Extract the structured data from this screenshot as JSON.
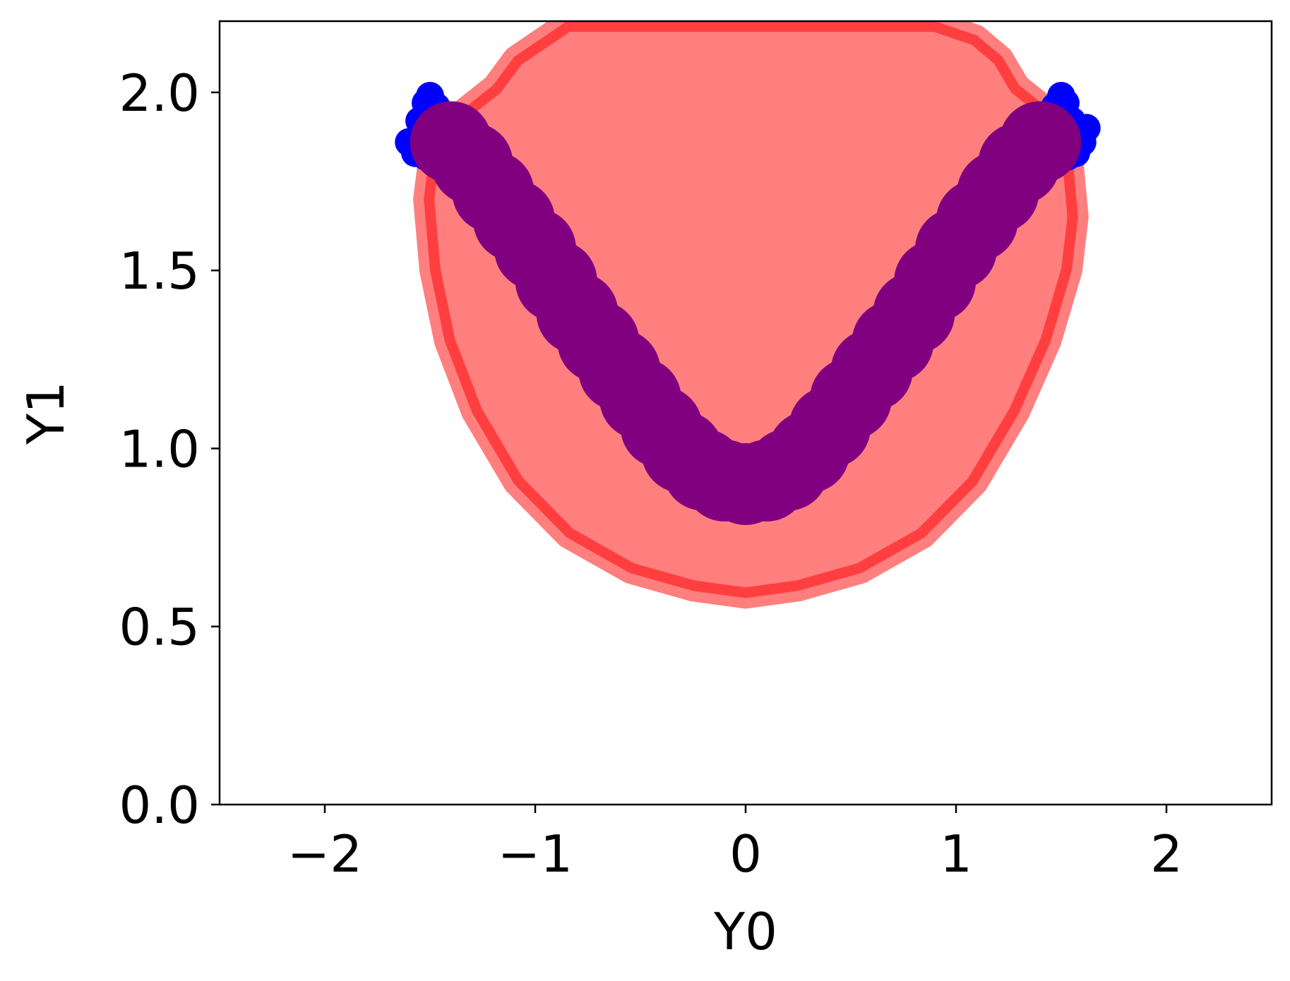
{
  "chart_data": {
    "type": "scatter",
    "title": "",
    "xlabel": "Y0",
    "ylabel": "Y1",
    "xlim": [
      -2.5,
      2.5
    ],
    "ylim": [
      0.0,
      2.2
    ],
    "xticks": [
      -2,
      -1,
      0,
      1,
      2
    ],
    "xtick_labels": [
      "−2",
      "−1",
      "0",
      "1",
      "2"
    ],
    "yticks": [
      0.0,
      0.5,
      1.0,
      1.5,
      2.0
    ],
    "ytick_labels": [
      "0.0",
      "0.5",
      "1.0",
      "1.5",
      "2.0"
    ],
    "grid": false,
    "legend": "none",
    "series": [
      {
        "color": "#ff0000",
        "alpha": 0.5,
        "region_outline": [
          [
            -1.53,
            1.7
          ],
          [
            -1.5,
            1.84
          ],
          [
            -1.35,
            1.95
          ],
          [
            -1.2,
            2.02
          ],
          [
            -1.1,
            2.1
          ],
          [
            -0.95,
            2.16
          ],
          [
            -0.85,
            2.2
          ],
          [
            -0.4,
            2.2
          ],
          [
            0.0,
            2.2
          ],
          [
            0.4,
            2.2
          ],
          [
            0.9,
            2.2
          ],
          [
            1.1,
            2.16
          ],
          [
            1.22,
            2.1
          ],
          [
            1.3,
            2.02
          ],
          [
            1.45,
            1.95
          ],
          [
            1.55,
            1.84
          ],
          [
            1.58,
            1.65
          ],
          [
            1.55,
            1.5
          ],
          [
            1.45,
            1.3
          ],
          [
            1.3,
            1.1
          ],
          [
            1.1,
            0.9
          ],
          [
            0.85,
            0.75
          ],
          [
            0.55,
            0.65
          ],
          [
            0.25,
            0.6
          ],
          [
            0.0,
            0.58
          ],
          [
            -0.25,
            0.6
          ],
          [
            -0.55,
            0.65
          ],
          [
            -0.85,
            0.75
          ],
          [
            -1.1,
            0.9
          ],
          [
            -1.3,
            1.1
          ],
          [
            -1.43,
            1.3
          ],
          [
            -1.5,
            1.5
          ]
        ]
      },
      {
        "color": "#0000ff",
        "x": [
          -1.55,
          -1.52,
          -1.48,
          -1.45,
          -1.6,
          -1.57,
          -1.5,
          -1.43,
          -1.52,
          -1.47,
          1.55,
          1.52,
          1.48,
          1.45,
          1.6,
          1.57,
          1.5,
          1.62,
          1.53,
          1.47
        ],
        "y": [
          1.92,
          1.97,
          1.88,
          1.94,
          1.86,
          1.83,
          1.99,
          1.89,
          1.82,
          1.96,
          1.92,
          1.97,
          1.88,
          1.94,
          1.86,
          1.83,
          1.99,
          1.9,
          1.82,
          1.96
        ]
      },
      {
        "color": "#800080",
        "x": [
          -1.4,
          -1.3,
          -1.2,
          -1.1,
          -1.0,
          -0.9,
          -0.8,
          -0.7,
          -0.6,
          -0.5,
          -0.4,
          -0.3,
          -0.2,
          -0.1,
          0.0,
          0.1,
          0.2,
          0.3,
          0.4,
          0.5,
          0.6,
          0.7,
          0.8,
          0.9,
          1.0,
          1.1,
          1.2,
          1.3,
          1.4
        ],
        "y": [
          1.86,
          1.8,
          1.72,
          1.64,
          1.56,
          1.47,
          1.38,
          1.3,
          1.22,
          1.14,
          1.06,
          0.99,
          0.94,
          0.91,
          0.9,
          0.91,
          0.94,
          0.99,
          1.06,
          1.14,
          1.22,
          1.3,
          1.38,
          1.47,
          1.56,
          1.64,
          1.72,
          1.8,
          1.86
        ]
      }
    ]
  }
}
